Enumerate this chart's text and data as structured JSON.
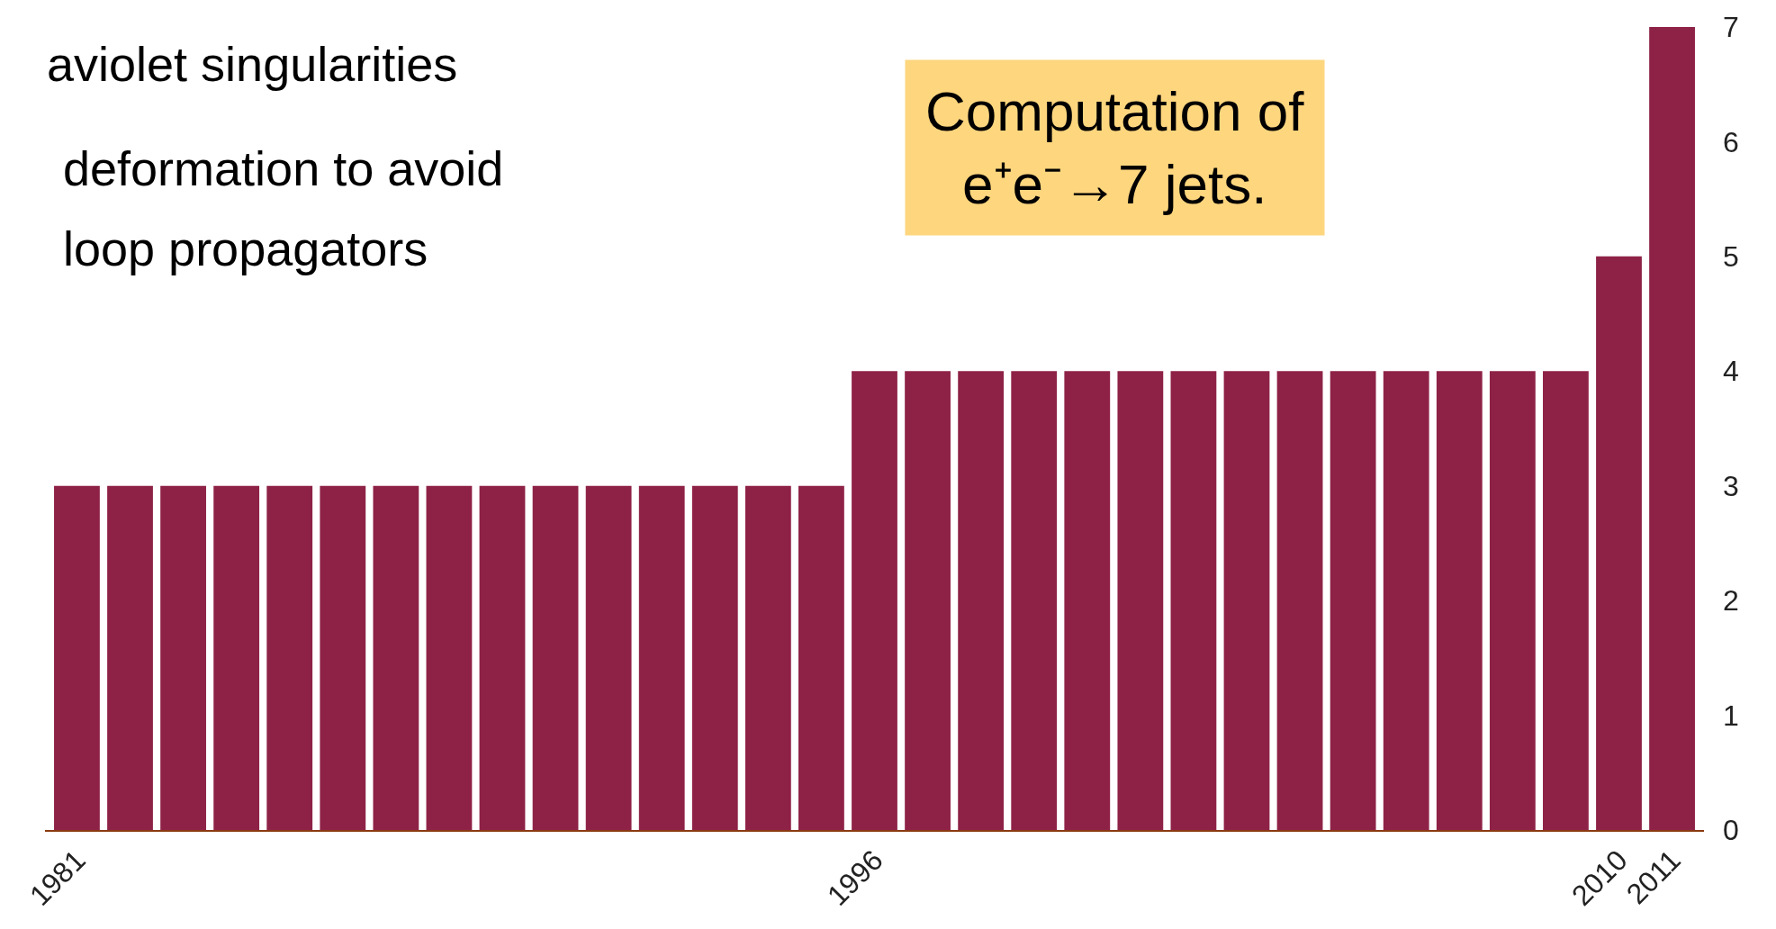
{
  "chart_data": {
    "type": "bar",
    "categories": [
      "1981",
      null,
      null,
      null,
      null,
      null,
      null,
      null,
      null,
      null,
      null,
      null,
      null,
      null,
      null,
      "1996",
      null,
      null,
      null,
      null,
      null,
      null,
      null,
      null,
      null,
      null,
      null,
      null,
      null,
      "2010",
      "2011"
    ],
    "values": [
      3,
      3,
      3,
      3,
      3,
      3,
      3,
      3,
      3,
      3,
      3,
      3,
      3,
      3,
      3,
      4,
      4,
      4,
      4,
      4,
      4,
      4,
      4,
      4,
      4,
      4,
      4,
      4,
      4,
      5,
      7
    ],
    "color": "#8e2246",
    "ylim": [
      0,
      7
    ],
    "yticks": [
      0,
      1,
      2,
      3,
      4,
      5,
      6,
      7
    ],
    "annotations": [
      "aviolet singularities",
      "deformation to avoid",
      "loop propagators",
      "Computation of\ne⁺e⁻→7 jets."
    ]
  }
}
